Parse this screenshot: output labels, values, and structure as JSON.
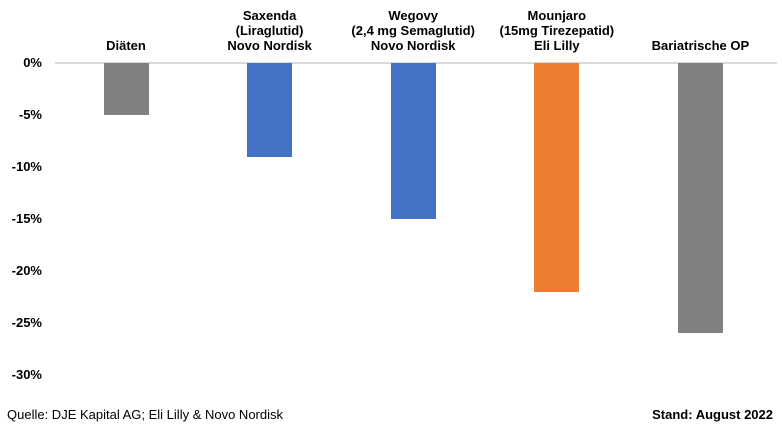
{
  "chart_data": {
    "type": "bar",
    "title": "",
    "xlabel": "",
    "ylabel": "",
    "categories": [
      "Diäten",
      "Saxenda\n(Liraglutid)\nNovo Nordisk",
      "Wegovy\n(2,4 mg Semaglutid)\nNovo Nordisk",
      "Mounjaro\n(15mg Tirezepatid)\nEli Lilly",
      "Bariatrische OP"
    ],
    "values": [
      -5,
      -9,
      -15,
      -22,
      -26
    ],
    "bar_colors": [
      "#808080",
      "#4472c4",
      "#4472c4",
      "#ed7d31",
      "#808080"
    ],
    "y_ticks": [
      "0%",
      "-5%",
      "-10%",
      "-15%",
      "-20%",
      "-25%",
      "-30%"
    ],
    "y_tick_values": [
      0,
      -5,
      -10,
      -15,
      -20,
      -25,
      -30
    ],
    "ylim": [
      -30,
      0
    ],
    "grid": "zero-axis-line-only",
    "axis_line_color": "#d9d9d9",
    "legend": "none",
    "category_labels_position": "above-chart"
  },
  "footer": {
    "source": "Quelle: DJE Kapital AG; Eli Lilly & Novo Nordisk",
    "date": "Stand: August 2022"
  }
}
